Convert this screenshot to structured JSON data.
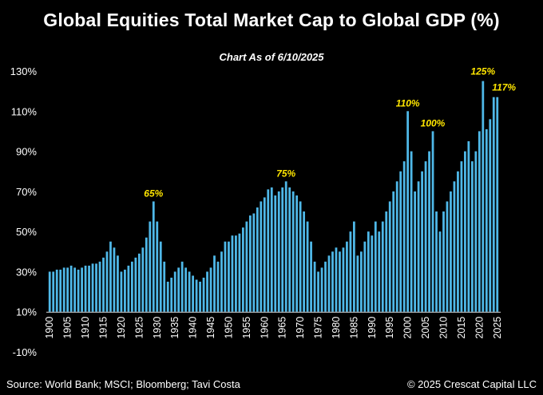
{
  "chart_data": {
    "type": "bar",
    "title": "Global Equities Total Market Cap to Global GDP (%)",
    "subtitle": "Chart As of 6/10/2025",
    "xlabel": "",
    "ylabel": "",
    "ylim": [
      -10,
      130
    ],
    "yticks": [
      -10,
      10,
      30,
      50,
      70,
      90,
      110,
      130
    ],
    "ytick_labels": [
      "-10%",
      "10%",
      "30%",
      "50%",
      "70%",
      "90%",
      "110%",
      "130%"
    ],
    "xticks": [
      1900,
      1905,
      1910,
      1915,
      1920,
      1925,
      1930,
      1935,
      1940,
      1945,
      1950,
      1955,
      1960,
      1965,
      1970,
      1975,
      1980,
      1985,
      1990,
      1995,
      2000,
      2005,
      2010,
      2015,
      2020,
      2025
    ],
    "grid": false,
    "bar_color": "#4FB8E8",
    "annotation_color": "#FFE600",
    "x": [
      1900,
      1901,
      1902,
      1903,
      1904,
      1905,
      1906,
      1907,
      1908,
      1909,
      1910,
      1911,
      1912,
      1913,
      1914,
      1915,
      1916,
      1917,
      1918,
      1919,
      1920,
      1921,
      1922,
      1923,
      1924,
      1925,
      1926,
      1927,
      1928,
      1929,
      1930,
      1931,
      1932,
      1933,
      1934,
      1935,
      1936,
      1937,
      1938,
      1939,
      1940,
      1941,
      1942,
      1943,
      1944,
      1945,
      1946,
      1947,
      1948,
      1949,
      1950,
      1951,
      1952,
      1953,
      1954,
      1955,
      1956,
      1957,
      1958,
      1959,
      1960,
      1961,
      1962,
      1963,
      1964,
      1965,
      1966,
      1967,
      1968,
      1969,
      1970,
      1971,
      1972,
      1973,
      1974,
      1975,
      1976,
      1977,
      1978,
      1979,
      1980,
      1981,
      1982,
      1983,
      1984,
      1985,
      1986,
      1987,
      1988,
      1989,
      1990,
      1991,
      1992,
      1993,
      1994,
      1995,
      1996,
      1997,
      1998,
      1999,
      2000,
      2001,
      2002,
      2003,
      2004,
      2005,
      2006,
      2007,
      2008,
      2009,
      2010,
      2011,
      2012,
      2013,
      2014,
      2015,
      2016,
      2017,
      2018,
      2019,
      2020,
      2021,
      2022,
      2023,
      2024,
      2025
    ],
    "values": [
      30,
      30,
      31,
      31,
      32,
      32,
      33,
      32,
      31,
      32,
      33,
      33,
      34,
      34,
      35,
      37,
      40,
      45,
      42,
      38,
      30,
      31,
      33,
      35,
      37,
      39,
      42,
      47,
      55,
      65,
      55,
      45,
      35,
      25,
      27,
      30,
      32,
      35,
      32,
      30,
      28,
      26,
      25,
      27,
      30,
      32,
      38,
      35,
      40,
      45,
      45,
      48,
      48,
      49,
      52,
      55,
      58,
      59,
      62,
      65,
      67,
      71,
      72,
      68,
      70,
      72,
      75,
      72,
      70,
      68,
      65,
      60,
      55,
      45,
      35,
      30,
      32,
      35,
      38,
      40,
      42,
      40,
      42,
      45,
      50,
      55,
      38,
      40,
      45,
      50,
      48,
      55,
      50,
      55,
      60,
      65,
      70,
      75,
      80,
      85,
      110,
      90,
      70,
      75,
      80,
      85,
      90,
      100,
      60,
      50,
      60,
      65,
      70,
      75,
      80,
      85,
      90,
      95,
      85,
      90,
      100,
      125,
      101,
      106,
      117,
      117
    ],
    "annotations": [
      {
        "x": 1929,
        "value": 65,
        "label": "65%"
      },
      {
        "x": 1966,
        "value": 75,
        "label": "75%"
      },
      {
        "x": 2000,
        "value": 110,
        "label": "110%"
      },
      {
        "x": 2007,
        "value": 100,
        "label": "100%"
      },
      {
        "x": 2021,
        "value": 125,
        "label": "125%"
      },
      {
        "x": 2024,
        "value": 117,
        "label": "117%"
      }
    ]
  },
  "footer": {
    "source": "Source: World Bank; MSCI; Bloomberg; Tavi Costa",
    "copyright": "© 2025 Crescat Capital LLC"
  }
}
